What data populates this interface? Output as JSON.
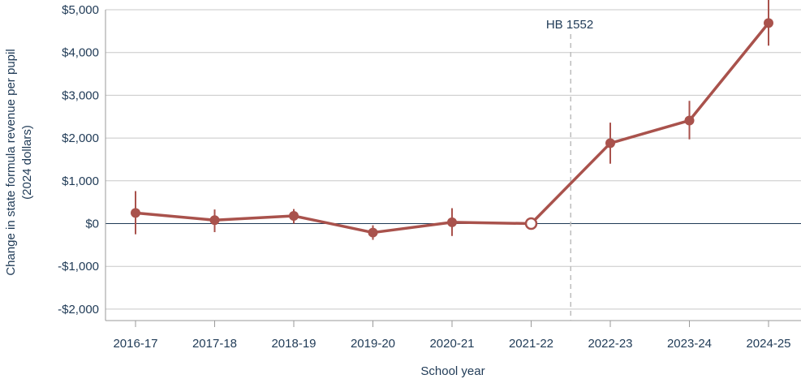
{
  "chart_data": {
    "type": "line",
    "xlabel": "School year",
    "ylabel_line1": "Change in state formula revenue per pupil",
    "ylabel_line2": "(2024 dollars)",
    "categories": [
      "2016-17",
      "2017-18",
      "2018-19",
      "2019-20",
      "2020-21",
      "2021-22",
      "2022-23",
      "2023-24",
      "2024-25"
    ],
    "series": [
      {
        "values": [
          250,
          80,
          180,
          -210,
          30,
          0,
          1880,
          2410,
          4690
        ],
        "ci_low": [
          -250,
          -200,
          0,
          -380,
          -290,
          0,
          1400,
          1970,
          4160
        ],
        "ci_high": [
          760,
          330,
          340,
          -40,
          360,
          0,
          2360,
          2870,
          5230
        ],
        "reference_index": 5,
        "color": "#a9524c"
      }
    ],
    "yticks": [
      5000,
      4000,
      3000,
      2000,
      1000,
      0,
      -1000,
      -2000
    ],
    "ytick_labels": [
      "$5,000",
      "$4,000",
      "$3,000",
      "$2,000",
      "$1,000",
      "$0",
      "-$1,000",
      "-$2,000"
    ],
    "ylim": [
      -2300,
      5000
    ],
    "grid": "horizontal",
    "annotation": {
      "text": "HB 1552",
      "x_between": [
        "2021-22",
        "2022-23"
      ]
    },
    "colors": {
      "grid": "#c8c8c8",
      "zero_line": "#1f3a56",
      "text": "#1f3a56",
      "event_line": "#bdbdbd"
    }
  }
}
